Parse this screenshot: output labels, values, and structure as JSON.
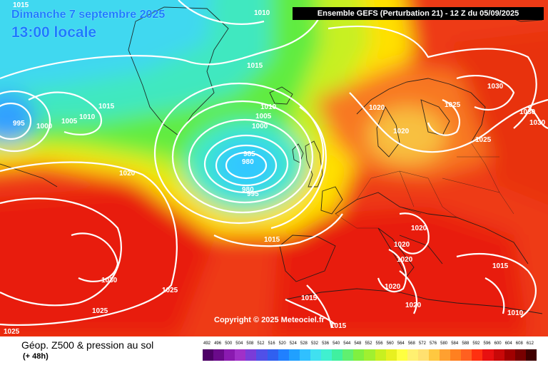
{
  "map": {
    "date_label": "Dimanche 7 septembre 2025",
    "time_label": "13:00 locale",
    "header": "Ensemble GEFS  (Perturbation 21)  -  12 Z du 05/09/2025",
    "copyright": "Copyright © 2025 Meteociel.fr",
    "isobar_labels": [
      "1015",
      "1010",
      "1015",
      "995",
      "1000",
      "1005",
      "1010",
      "1015",
      "1010",
      "1005",
      "1000",
      "985",
      "980",
      "980",
      "995",
      "1020",
      "1015",
      "1030",
      "1025",
      "1025",
      "1025",
      "1020",
      "1020",
      "1025",
      "1030",
      "1030",
      "1030",
      "1025",
      "1020",
      "1020",
      "1020",
      "1020",
      "1020",
      "1015",
      "1015",
      "1015",
      "1010"
    ]
  },
  "footer": {
    "title": "Géop. Z500 & pression au sol",
    "subtitle": "(+ 48h)"
  },
  "scale": {
    "labels": [
      "492",
      "496",
      "500",
      "504",
      "508",
      "512",
      "516",
      "520",
      "524",
      "528",
      "532",
      "536",
      "540",
      "544",
      "548",
      "552",
      "556",
      "560",
      "564",
      "568",
      "572",
      "576",
      "580",
      "584",
      "588",
      "592",
      "596",
      "600",
      "604",
      "608",
      "612"
    ],
    "colors": [
      "#4d0066",
      "#6a0a8a",
      "#8a1ab0",
      "#a030c8",
      "#7a3cd8",
      "#5050e8",
      "#3060f0",
      "#2080ff",
      "#20a0ff",
      "#30c0ff",
      "#40e0f0",
      "#40f0d0",
      "#40f0a0",
      "#60f070",
      "#80f040",
      "#a0f030",
      "#c8f020",
      "#e8f020",
      "#ffff40",
      "#fff070",
      "#ffe070",
      "#ffc840",
      "#ffa030",
      "#ff8020",
      "#ff6020",
      "#ff3010",
      "#e81010",
      "#c80808",
      "#a00000",
      "#780000",
      "#400000"
    ]
  }
}
